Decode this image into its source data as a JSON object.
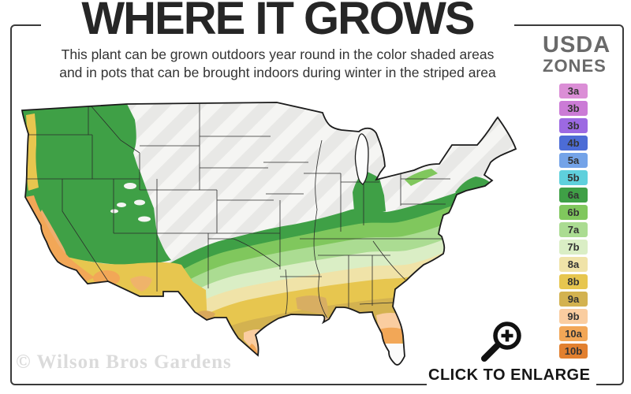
{
  "header": {
    "title": "WHERE IT GROWS",
    "subtitle_line1": "This plant can be grown outdoors year round in the color shaded areas",
    "subtitle_line2": "and in pots that can be brought indoors during winter in the striped area"
  },
  "legend": {
    "title_line1": "USDA",
    "title_line2": "ZONES",
    "label_color": "#333333",
    "zones": [
      {
        "label": "3a",
        "color": "#DB8ED6"
      },
      {
        "label": "3b",
        "color": "#CB7BD6"
      },
      {
        "label": "3b",
        "color": "#9C69E2"
      },
      {
        "label": "4b",
        "color": "#4C6CD6"
      },
      {
        "label": "5a",
        "color": "#74A3E8"
      },
      {
        "label": "5b",
        "color": "#5FD0DC"
      },
      {
        "label": "6a",
        "color": "#3FA046"
      },
      {
        "label": "6b",
        "color": "#80C75D"
      },
      {
        "label": "7a",
        "color": "#ABDC92"
      },
      {
        "label": "7b",
        "color": "#DAEEC5"
      },
      {
        "label": "8a",
        "color": "#F0E3A8"
      },
      {
        "label": "8b",
        "color": "#E7C64F"
      },
      {
        "label": "9a",
        "color": "#D3B250"
      },
      {
        "label": "9b",
        "color": "#FACDA0"
      },
      {
        "label": "10a",
        "color": "#F2A757"
      },
      {
        "label": "10b",
        "color": "#E2802F"
      }
    ]
  },
  "map": {
    "base_color": "#f5f5f3",
    "stripe_color": "#e8e8e6",
    "outline_color": "#1b1b1b"
  },
  "watermark": "© Wilson Bros Gardens",
  "enlarge": {
    "label": "CLICK TO ENLARGE",
    "icon": "magnifier-zoom-icon"
  }
}
